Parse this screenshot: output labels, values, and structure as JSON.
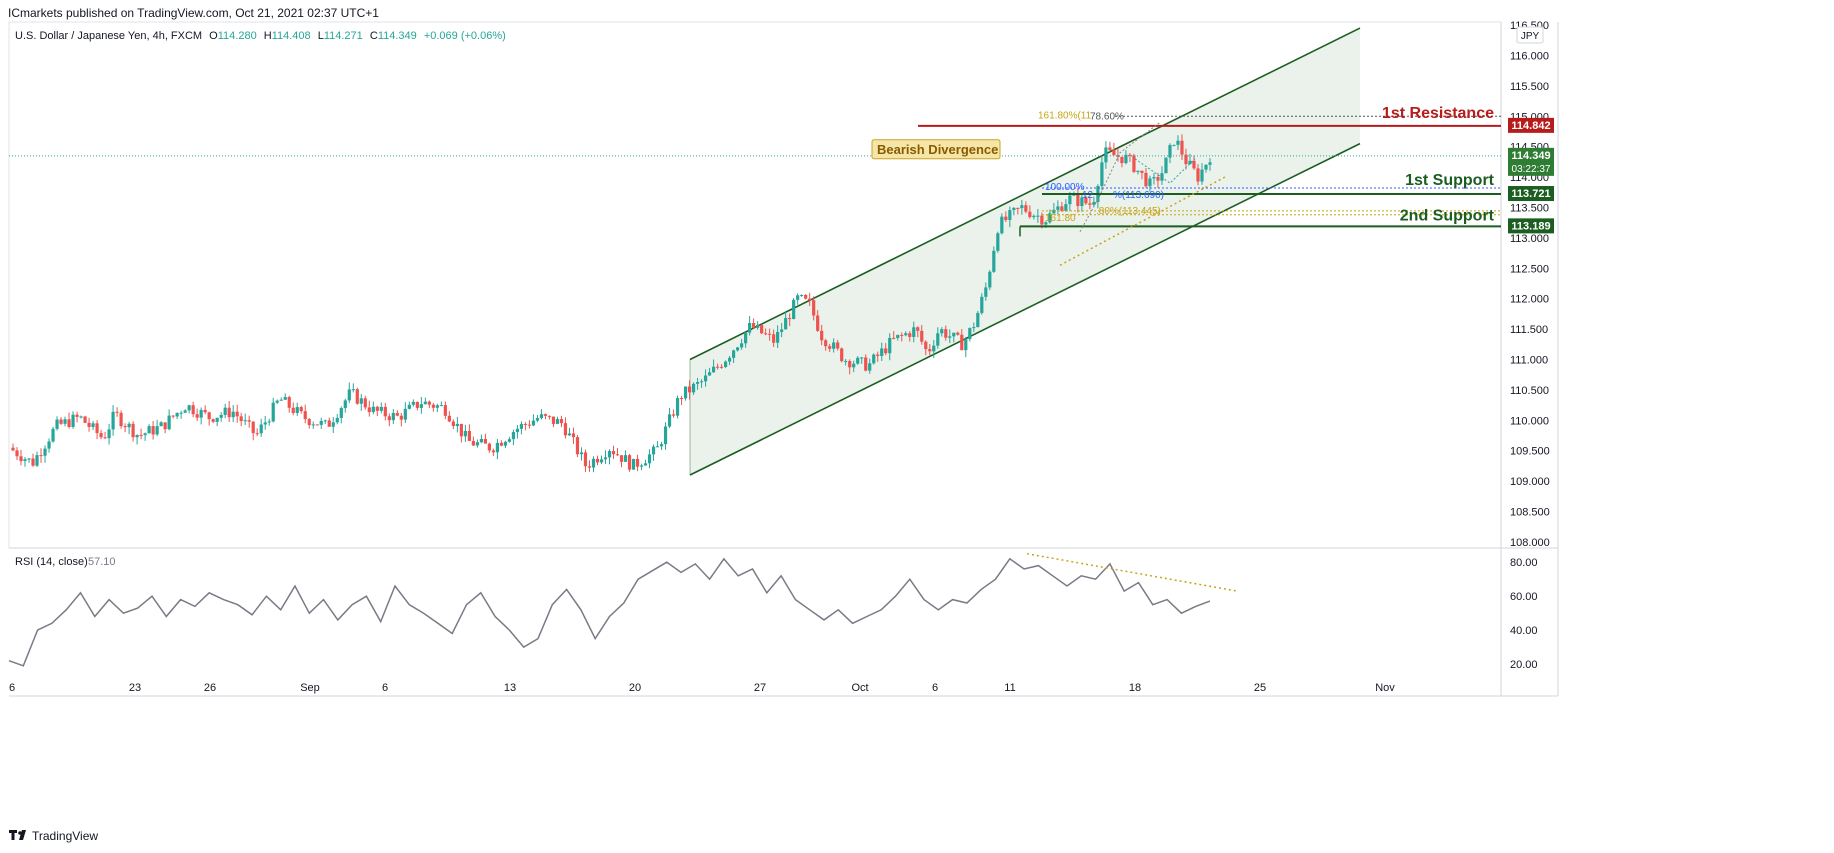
{
  "publisher_line": "ICmarkets published on TradingView.com, Oct 21, 2021 02:37 UTC+1",
  "symbol": {
    "name": "U.S. Dollar / Japanese Yen, 4h, FXCM",
    "open_label": "O",
    "open": "114.280",
    "high_label": "H",
    "high": "114.408",
    "low_label": "L",
    "low": "114.271",
    "close_label": "C",
    "close": "114.349",
    "change": "+0.069 (+0.06%)",
    "currency": "JPY"
  },
  "price_axis": {
    "ticks": [
      "116.500",
      "116.000",
      "115.500",
      "115.000",
      "114.500",
      "114.000",
      "113.500",
      "113.000",
      "112.500",
      "112.000",
      "111.500",
      "111.000",
      "110.500",
      "110.000",
      "109.500",
      "109.000",
      "108.500",
      "108.000"
    ]
  },
  "time_axis": {
    "labels": [
      "6",
      "23",
      "26",
      "Sep",
      "6",
      "13",
      "20",
      "27",
      "Oct",
      "6",
      "11",
      "18",
      "25",
      "Nov"
    ]
  },
  "annotations": {
    "resistance_label": "1st Resistance",
    "resistance_price": "114.842",
    "support1_label": "1st Support",
    "support1_price": "113.721",
    "support2_label": "2nd Support",
    "support2_price": "113.189",
    "current_price": "114.349",
    "countdown": "03:22:37",
    "bearish_divergence": "Bearish Divergence",
    "fib_top_1": "161.80%(11",
    "fib_top_2": "78.60%",
    "fib_100": "100.00%",
    "fib_mid_1": "12",
    "fib_mid_2": "%(113.690)",
    "fib_low_1": "161.80",
    "fib_low_2": ".80%(113.445)"
  },
  "rsi": {
    "label": "RSI (14, close)",
    "value": "57.10",
    "ticks": [
      "80.00",
      "60.00",
      "40.00",
      "20.00"
    ]
  },
  "footer": {
    "brand": "TradingView"
  },
  "colors": {
    "up": "#26a69a",
    "down": "#ef5350",
    "channel": "#1b5e20",
    "channel_fill": "#e8efe8",
    "resistance": "#b71c1c",
    "support": "#1b5e20",
    "fib_orange": "#c8a415",
    "fib_blue": "#2962ff",
    "rsi_line": "#787b86"
  },
  "chart_data": {
    "type": "candlestick",
    "title": "U.S. Dollar / Japanese Yen, 4h, FXCM",
    "ylim": [
      107.9,
      116.55
    ],
    "y_ticks": [
      116.5,
      116,
      115.5,
      115,
      114.5,
      114,
      113.5,
      113,
      112.5,
      112,
      111.5,
      111,
      110.5,
      110,
      109.5,
      109,
      108.5,
      108
    ],
    "x_labels": [
      "6",
      "23",
      "26",
      "Sep",
      "6",
      "13",
      "20",
      "27",
      "Oct",
      "6",
      "11",
      "18",
      "25",
      "Nov"
    ],
    "price_path": [
      [
        0,
        109.55
      ],
      [
        10,
        109.3
      ],
      [
        20,
        109.9
      ],
      [
        30,
        110.05
      ],
      [
        40,
        109.7
      ],
      [
        45,
        110.1
      ],
      [
        55,
        109.75
      ],
      [
        65,
        109.9
      ],
      [
        75,
        110.25
      ],
      [
        85,
        110.05
      ],
      [
        95,
        110.15
      ],
      [
        105,
        109.75
      ],
      [
        115,
        110.35
      ],
      [
        125,
        110.05
      ],
      [
        135,
        109.9
      ],
      [
        145,
        110.45
      ],
      [
        155,
        110.15
      ],
      [
        165,
        110.05
      ],
      [
        175,
        110.3
      ],
      [
        185,
        110.2
      ],
      [
        195,
        109.65
      ],
      [
        205,
        109.55
      ],
      [
        215,
        109.85
      ],
      [
        225,
        110.05
      ],
      [
        235,
        109.95
      ],
      [
        245,
        109.25
      ],
      [
        255,
        109.55
      ],
      [
        265,
        109.25
      ],
      [
        275,
        109.5
      ],
      [
        285,
        110.4
      ],
      [
        295,
        110.65
      ],
      [
        305,
        111.05
      ],
      [
        315,
        111.55
      ],
      [
        325,
        111.3
      ],
      [
        335,
        112.0
      ],
      [
        340,
        111.9
      ],
      [
        345,
        111.4
      ],
      [
        355,
        111.0
      ],
      [
        365,
        110.9
      ],
      [
        375,
        111.3
      ],
      [
        385,
        111.5
      ],
      [
        390,
        111.1
      ],
      [
        395,
        111.5
      ],
      [
        405,
        111.25
      ],
      [
        410,
        111.6
      ],
      [
        415,
        112.2
      ],
      [
        420,
        113.2
      ],
      [
        430,
        113.5
      ],
      [
        440,
        113.3
      ],
      [
        450,
        113.65
      ],
      [
        460,
        113.55
      ],
      [
        465,
        114.4
      ],
      [
        475,
        114.3
      ],
      [
        485,
        113.85
      ],
      [
        490,
        114.1
      ],
      [
        495,
        114.65
      ],
      [
        500,
        114.25
      ],
      [
        505,
        114.0
      ],
      [
        510,
        114.35
      ]
    ],
    "channel": {
      "upper": [
        [
          0,
          111.0
        ],
        [
          1,
          116.45
        ]
      ],
      "lower": [
        [
          0,
          109.1
        ],
        [
          1,
          114.55
        ]
      ]
    },
    "levels": [
      {
        "name": "1st Resistance",
        "value": 114.842
      },
      {
        "name": "1st Support",
        "value": 113.721
      },
      {
        "name": "2nd Support",
        "value": 113.189
      }
    ],
    "rsi": {
      "ylim": [
        13,
        86
      ],
      "current": 57.1,
      "path": [
        [
          0,
          22
        ],
        [
          6,
          19
        ],
        [
          12,
          40
        ],
        [
          18,
          44
        ],
        [
          24,
          52
        ],
        [
          30,
          62
        ],
        [
          36,
          48
        ],
        [
          42,
          58
        ],
        [
          48,
          50
        ],
        [
          54,
          53
        ],
        [
          60,
          60
        ],
        [
          66,
          48
        ],
        [
          72,
          58
        ],
        [
          78,
          54
        ],
        [
          84,
          62
        ],
        [
          90,
          58
        ],
        [
          96,
          55
        ],
        [
          102,
          49
        ],
        [
          108,
          60
        ],
        [
          114,
          52
        ],
        [
          120,
          66
        ],
        [
          126,
          50
        ],
        [
          132,
          58
        ],
        [
          138,
          46
        ],
        [
          144,
          55
        ],
        [
          150,
          60
        ],
        [
          156,
          45
        ],
        [
          162,
          66
        ],
        [
          168,
          55
        ],
        [
          174,
          50
        ],
        [
          180,
          44
        ],
        [
          186,
          38
        ],
        [
          192,
          55
        ],
        [
          198,
          62
        ],
        [
          204,
          48
        ],
        [
          210,
          40
        ],
        [
          216,
          30
        ],
        [
          222,
          35
        ],
        [
          228,
          55
        ],
        [
          234,
          64
        ],
        [
          240,
          52
        ],
        [
          246,
          35
        ],
        [
          252,
          48
        ],
        [
          258,
          56
        ],
        [
          264,
          70
        ],
        [
          270,
          75
        ],
        [
          276,
          80
        ],
        [
          282,
          74
        ],
        [
          288,
          79
        ],
        [
          294,
          70
        ],
        [
          300,
          82
        ],
        [
          306,
          72
        ],
        [
          312,
          76
        ],
        [
          318,
          62
        ],
        [
          324,
          72
        ],
        [
          330,
          58
        ],
        [
          336,
          52
        ],
        [
          342,
          46
        ],
        [
          348,
          52
        ],
        [
          354,
          44
        ],
        [
          360,
          48
        ],
        [
          366,
          52
        ],
        [
          372,
          60
        ],
        [
          378,
          70
        ],
        [
          384,
          58
        ],
        [
          390,
          52
        ],
        [
          396,
          58
        ],
        [
          402,
          56
        ],
        [
          408,
          64
        ],
        [
          414,
          70
        ],
        [
          420,
          82
        ],
        [
          426,
          76
        ],
        [
          432,
          78
        ],
        [
          438,
          72
        ],
        [
          444,
          66
        ],
        [
          450,
          72
        ],
        [
          456,
          70
        ],
        [
          462,
          79
        ],
        [
          468,
          63
        ],
        [
          474,
          68
        ],
        [
          480,
          55
        ],
        [
          486,
          58
        ],
        [
          492,
          50
        ],
        [
          498,
          54
        ],
        [
          504,
          57.1
        ]
      ]
    }
  }
}
